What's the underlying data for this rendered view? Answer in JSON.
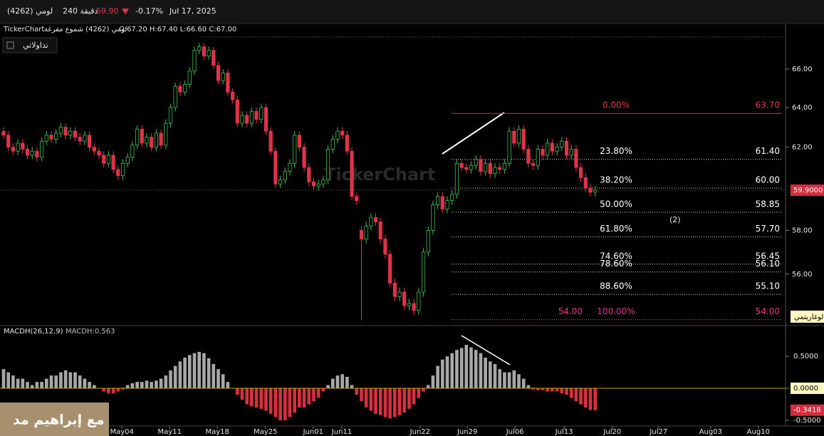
{
  "header": {
    "symbol": "لومي (4262)",
    "interval": "240 دقيقة",
    "price": "59.90",
    "change": "-0.17%",
    "date": "Jul 17, 2025",
    "button": "تداولاتي",
    "overlay": "مع إبراهيم مد"
  },
  "chart_data": [
    {
      "type": "candlestick",
      "title": "TickerChart",
      "subtitle": "لومي (4262) شموع مفرغة",
      "ohlc_label": "O:67.20 H:67.40 L:66.60 C:67.00",
      "watermark": "TickerChart",
      "scale_label": "لوغاريتمي",
      "annotation": "(2)",
      "log_scale": true,
      "up_color": "#3fbf4f",
      "down_color": "#e0334a",
      "x": [
        0,
        1,
        2,
        3,
        4,
        5,
        6,
        7,
        8,
        9,
        10,
        11,
        12,
        13,
        14,
        15,
        16,
        17,
        18,
        19,
        20,
        21,
        22,
        23,
        24,
        25,
        26,
        27,
        28,
        29,
        30,
        31,
        32,
        33,
        34,
        35,
        36,
        37,
        38,
        39,
        40,
        41,
        42,
        43,
        44,
        45,
        46,
        47,
        48,
        49,
        50,
        51,
        52,
        53,
        54,
        55,
        56,
        57,
        58,
        59,
        60,
        61,
        62,
        63,
        64,
        65,
        66,
        67,
        68,
        69,
        70,
        71,
        72,
        73,
        74,
        75,
        76,
        77,
        78,
        79,
        80,
        81,
        82,
        83,
        84,
        85,
        86,
        87,
        88,
        89,
        90,
        91,
        92,
        93,
        94,
        95,
        96,
        97,
        98,
        99,
        100,
        101,
        102,
        103,
        104,
        105,
        106,
        107,
        108,
        109,
        110,
        111,
        112,
        113,
        114,
        115,
        116,
        117,
        118,
        119,
        120,
        121,
        122,
        123,
        124
      ],
      "open": [
        62.8,
        62.6,
        62.0,
        61.8,
        62.2,
        61.9,
        61.6,
        61.8,
        61.5,
        62.3,
        62.6,
        62.4,
        62.7,
        63.0,
        62.6,
        62.8,
        62.5,
        62.3,
        62.6,
        62.0,
        61.8,
        61.6,
        61.2,
        61.6,
        60.9,
        60.6,
        61.2,
        61.5,
        62.1,
        62.9,
        62.2,
        62.5,
        62.0,
        62.7,
        62.1,
        63.2,
        64.0,
        65.1,
        64.8,
        65.2,
        65.9,
        67.0,
        67.2,
        66.7,
        67.0,
        66.2,
        65.4,
        65.8,
        64.8,
        64.4,
        63.2,
        63.6,
        63.2,
        63.8,
        63.4,
        64.0,
        62.8,
        61.8,
        60.2,
        60.4,
        60.8,
        61.2,
        62.6,
        62.0,
        61.0,
        60.3,
        60.1,
        60.2,
        60.4,
        61.9,
        62.4,
        62.8,
        62.6,
        61.8,
        59.6,
        58.0,
        57.6,
        58.2,
        58.6,
        58.4,
        57.6,
        56.9,
        55.6,
        55.0,
        55.2,
        54.6,
        54.7,
        54.4,
        55.2,
        57.0,
        58.0,
        59.2,
        59.6,
        59.0,
        59.4,
        59.7,
        61.2,
        61.0,
        60.9,
        61.1,
        61.4,
        60.8,
        61.2,
        60.7,
        61.0,
        60.9,
        61.2,
        62.8,
        62.2,
        62.9,
        61.9,
        61.2,
        61.1,
        61.9,
        61.6,
        62.2,
        61.8,
        62.0,
        62.3,
        61.6,
        61.9,
        61.0,
        60.5,
        60.0,
        59.8
      ],
      "high": [
        63.0,
        62.8,
        62.2,
        62.4,
        62.4,
        62.1,
        62.0,
        62.0,
        62.5,
        62.8,
        62.8,
        62.9,
        63.2,
        63.2,
        63.0,
        63.0,
        62.7,
        62.8,
        62.8,
        62.2,
        62.0,
        61.8,
        61.8,
        61.8,
        61.1,
        61.4,
        61.7,
        62.3,
        63.1,
        63.1,
        62.7,
        62.7,
        62.9,
        62.9,
        63.4,
        64.2,
        65.3,
        65.3,
        65.4,
        66.1,
        67.2,
        67.4,
        67.4,
        67.2,
        67.2,
        66.4,
        66.0,
        66.0,
        65.0,
        64.6,
        63.8,
        63.8,
        64.0,
        64.0,
        64.2,
        64.2,
        63.0,
        62.0,
        60.6,
        61.0,
        61.4,
        62.8,
        62.8,
        62.2,
        61.2,
        60.5,
        60.4,
        60.6,
        62.1,
        62.6,
        63.0,
        63.0,
        62.8,
        62.0,
        59.8,
        58.2,
        58.4,
        58.8,
        58.8,
        58.6,
        57.8,
        57.1,
        55.8,
        55.4,
        55.4,
        54.9,
        54.9,
        55.4,
        57.2,
        58.2,
        59.4,
        59.8,
        59.8,
        59.6,
        59.9,
        61.4,
        61.4,
        61.2,
        61.3,
        61.6,
        61.6,
        61.4,
        61.4,
        61.2,
        61.2,
        61.4,
        63.0,
        63.0,
        63.1,
        63.1,
        62.1,
        61.4,
        62.1,
        62.1,
        62.4,
        62.4,
        62.2,
        62.5,
        62.5,
        62.1,
        62.1,
        61.2,
        60.7,
        60.2,
        60.1
      ],
      "low": [
        62.4,
        61.8,
        61.6,
        61.6,
        61.7,
        61.4,
        61.4,
        61.3,
        61.3,
        62.1,
        62.2,
        62.2,
        62.5,
        62.4,
        62.4,
        62.3,
        62.1,
        62.1,
        61.8,
        61.6,
        61.4,
        61.0,
        61.0,
        60.7,
        60.4,
        60.4,
        61.0,
        61.3,
        61.9,
        62.0,
        62.0,
        61.8,
        61.8,
        61.9,
        61.9,
        63.0,
        63.8,
        64.6,
        64.6,
        65.0,
        65.7,
        66.8,
        66.5,
        66.5,
        66.0,
        65.2,
        65.2,
        64.6,
        64.2,
        63.0,
        63.0,
        63.0,
        63.0,
        63.2,
        63.2,
        62.6,
        61.6,
        60.0,
        60.0,
        60.2,
        60.6,
        61.0,
        61.8,
        60.8,
        60.1,
        59.9,
        59.9,
        60.0,
        60.2,
        61.7,
        62.2,
        62.4,
        61.6,
        59.4,
        59.2,
        54.0,
        57.4,
        58.0,
        58.2,
        57.4,
        56.7,
        55.4,
        54.8,
        54.8,
        54.4,
        54.4,
        54.2,
        54.2,
        55.0,
        56.8,
        57.8,
        59.0,
        58.8,
        58.8,
        59.2,
        59.5,
        60.8,
        60.7,
        60.7,
        60.9,
        60.6,
        60.6,
        60.5,
        60.5,
        60.7,
        60.7,
        61.0,
        62.0,
        62.0,
        61.7,
        61.0,
        60.9,
        60.9,
        61.4,
        61.4,
        61.6,
        61.6,
        61.8,
        61.4,
        61.4,
        60.8,
        60.3,
        59.8,
        59.6,
        59.6
      ],
      "close": [
        62.6,
        62.0,
        61.8,
        62.2,
        61.9,
        61.6,
        61.8,
        61.5,
        62.3,
        62.6,
        62.4,
        62.7,
        63.0,
        62.6,
        62.8,
        62.5,
        62.3,
        62.6,
        62.0,
        61.8,
        61.6,
        61.2,
        61.6,
        60.9,
        60.6,
        61.2,
        61.5,
        62.1,
        62.9,
        62.2,
        62.5,
        62.0,
        62.7,
        62.1,
        63.2,
        64.0,
        65.1,
        64.8,
        65.2,
        65.9,
        67.0,
        67.2,
        66.7,
        67.0,
        66.2,
        65.4,
        65.8,
        64.8,
        64.4,
        63.2,
        63.6,
        63.2,
        63.8,
        63.4,
        64.0,
        62.8,
        61.8,
        60.2,
        60.4,
        60.8,
        61.2,
        62.6,
        62.0,
        61.0,
        60.3,
        60.1,
        60.2,
        60.4,
        61.9,
        62.4,
        62.8,
        62.6,
        61.8,
        59.6,
        59.4,
        57.6,
        58.2,
        58.6,
        58.4,
        57.6,
        56.9,
        55.6,
        55.0,
        55.2,
        54.6,
        54.7,
        54.4,
        55.2,
        57.0,
        58.0,
        59.2,
        59.6,
        59.0,
        59.4,
        59.7,
        61.2,
        61.0,
        60.9,
        61.1,
        61.4,
        60.8,
        61.2,
        60.7,
        61.0,
        60.9,
        61.2,
        62.8,
        62.2,
        62.9,
        61.9,
        61.2,
        61.1,
        61.9,
        61.6,
        62.2,
        61.8,
        62.0,
        62.3,
        61.6,
        61.9,
        61.0,
        60.5,
        60.0,
        59.8,
        59.9
      ],
      "xlim": [
        -0.75,
        163.9
      ],
      "xticks": [
        {
          "value": 24.8,
          "label": "May04"
        },
        {
          "value": 34.8,
          "label": "May11"
        },
        {
          "value": 44.8,
          "label": "May18"
        },
        {
          "value": 54.9,
          "label": "May25"
        },
        {
          "value": 64.9,
          "label": "Jun01"
        },
        {
          "value": 70.9,
          "label": "Jun11"
        },
        {
          "value": 87.3,
          "label": "Jun22"
        },
        {
          "value": 97.2,
          "label": "Jun29"
        },
        {
          "value": 107.2,
          "label": "Jul06"
        },
        {
          "value": 117.5,
          "label": "Jul13"
        },
        {
          "value": 127.6,
          "label": "Jul20"
        },
        {
          "value": 137.3,
          "label": "Jul27"
        },
        {
          "value": 148.2,
          "label": "Aug03"
        },
        {
          "value": 158.2,
          "label": "Aug10"
        }
      ],
      "ylim": [
        53.8,
        67.8
      ],
      "yticks": [
        {
          "value": 66,
          "label": "66.00"
        },
        {
          "value": 64,
          "label": "64.00"
        },
        {
          "value": 62,
          "label": "62.00"
        },
        {
          "value": 58,
          "label": "58.00"
        },
        {
          "value": 56,
          "label": "56.00"
        }
      ],
      "last_price": 59.9,
      "last_price_label": "59.9000",
      "fib": [
        {
          "pct": "0.00%",
          "price": 63.7,
          "price_label": "63.70",
          "color": "#e0334a"
        },
        {
          "pct": "23.80%",
          "price": 61.4,
          "price_label": "61.40",
          "color": "#d0d0d0"
        },
        {
          "pct": "38.20%",
          "price": 60.0,
          "price_label": "60.00",
          "color": "#d0d0d0"
        },
        {
          "pct": "50.00%",
          "price": 58.85,
          "price_label": "58.85",
          "color": "#d0d0d0"
        },
        {
          "pct": "61.80%",
          "price": 57.7,
          "price_label": "57.70",
          "color": "#d0d0d0"
        },
        {
          "pct": "74.60%",
          "price": 56.45,
          "price_label": "56.45",
          "color": "#d0d0d0"
        },
        {
          "pct": "78.60%",
          "price": 56.1,
          "price_label": "56.10",
          "color": "#d0d0d0"
        },
        {
          "pct": "88.60%",
          "price": 55.1,
          "price_label": "55.10",
          "color": "#d0d0d0"
        },
        {
          "pct": "100.00%",
          "price": 54.0,
          "price_label": "54.00",
          "left_label": "54.00",
          "color": "#e0338a"
        }
      ]
    },
    {
      "type": "bar",
      "title": "MACDH(26,12,9)",
      "subtitle": "MACDH:0.563",
      "pos_color": "#a8a8a8",
      "neg_color": "#d9303f",
      "zero_color": "#c8a000",
      "values": [
        0.3,
        0.25,
        0.2,
        0.15,
        0.15,
        0.1,
        0.05,
        0.1,
        0.1,
        0.15,
        0.2,
        0.2,
        0.25,
        0.28,
        0.25,
        0.25,
        0.2,
        0.15,
        0.1,
        0.05,
        0.0,
        -0.05,
        -0.08,
        -0.08,
        -0.05,
        -0.02,
        0.05,
        0.08,
        0.1,
        0.1,
        0.12,
        0.1,
        0.12,
        0.15,
        0.2,
        0.28,
        0.35,
        0.42,
        0.48,
        0.52,
        0.55,
        0.57,
        0.55,
        0.47,
        0.38,
        0.3,
        0.22,
        0.1,
        0.0,
        -0.1,
        -0.18,
        -0.25,
        -0.28,
        -0.3,
        -0.32,
        -0.35,
        -0.4,
        -0.45,
        -0.5,
        -0.5,
        -0.45,
        -0.38,
        -0.3,
        -0.3,
        -0.25,
        -0.2,
        -0.15,
        -0.05,
        0.05,
        0.15,
        0.2,
        0.22,
        0.18,
        0.05,
        -0.1,
        -0.2,
        -0.3,
        -0.35,
        -0.4,
        -0.42,
        -0.45,
        -0.47,
        -0.45,
        -0.42,
        -0.38,
        -0.32,
        -0.25,
        -0.15,
        -0.05,
        0.05,
        0.2,
        0.35,
        0.45,
        0.5,
        0.55,
        0.6,
        0.63,
        0.68,
        0.64,
        0.6,
        0.55,
        0.48,
        0.42,
        0.38,
        0.3,
        0.25,
        0.25,
        0.28,
        0.22,
        0.15,
        0.05,
        -0.02,
        -0.03,
        -0.03,
        -0.05,
        -0.05,
        -0.05,
        -0.08,
        -0.1,
        -0.15,
        -0.2,
        -0.25,
        -0.3,
        -0.34,
        -0.3418
      ],
      "ylim": [
        -0.59,
        0.97
      ],
      "yticks": [
        {
          "value": 0.5,
          "label": "0.5000"
        },
        {
          "value": 0,
          "label": "0.0000"
        },
        {
          "value": -0.5,
          "label": "-0.5000"
        }
      ],
      "last_label": "-0.3418"
    }
  ]
}
